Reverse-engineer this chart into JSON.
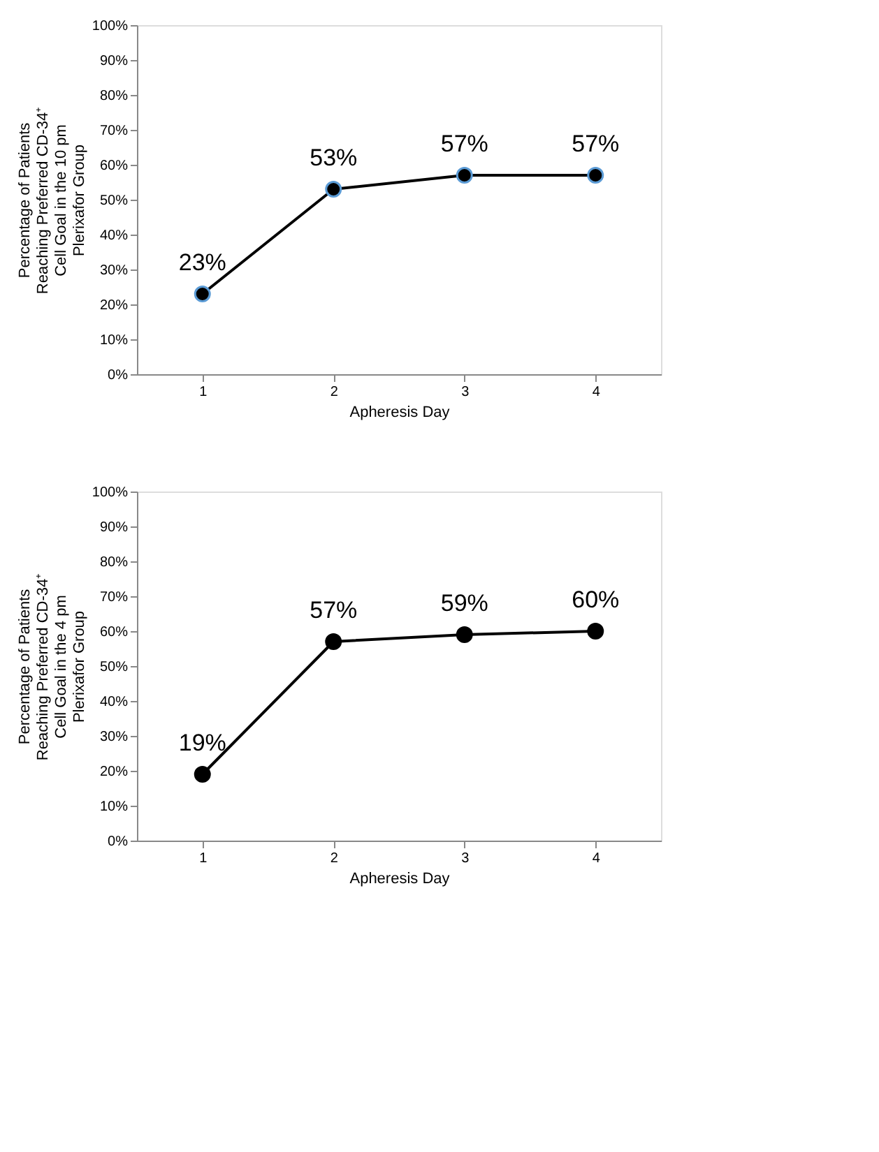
{
  "chart_data": [
    {
      "type": "line",
      "xlabel": "Apheresis Day",
      "ylabel": "Percentage of Patients Reaching Preferred CD-34⁺ Cell Goal in the 10 pm Plerixafor Group",
      "categories": [
        "1",
        "2",
        "3",
        "4"
      ],
      "series": [
        {
          "color": "#000000",
          "values": [
            23,
            53,
            57,
            57
          ],
          "value_labels": [
            "23%",
            "53%",
            "57%",
            "57%"
          ]
        }
      ],
      "ylim": [
        0,
        100
      ],
      "yticks": [
        {
          "value": 0,
          "label": "0%"
        },
        {
          "value": 10,
          "label": "10%"
        },
        {
          "value": 20,
          "label": "20%"
        },
        {
          "value": 30,
          "label": "30%"
        },
        {
          "value": 40,
          "label": "40%"
        },
        {
          "value": 50,
          "label": "50%"
        },
        {
          "value": 60,
          "label": "60%"
        },
        {
          "value": 70,
          "label": "70%"
        },
        {
          "value": 80,
          "label": "80%"
        },
        {
          "value": 90,
          "label": "90%"
        },
        {
          "value": 100,
          "label": "100%"
        }
      ],
      "marker": "circle",
      "grid": false
    },
    {
      "type": "line",
      "xlabel": "Apheresis Day",
      "ylabel": "Percentage of Patients Reaching Preferred CD-34⁺ Cell Goal in the 4 pm Plerixafor Group",
      "categories": [
        "1",
        "2",
        "3",
        "4"
      ],
      "series": [
        {
          "color": "#000000",
          "values": [
            19,
            57,
            59,
            60
          ],
          "value_labels": [
            "19%",
            "57%",
            "59%",
            "60%"
          ]
        }
      ],
      "ylim": [
        0,
        100
      ],
      "yticks": [
        {
          "value": 0,
          "label": "0%"
        },
        {
          "value": 10,
          "label": "10%"
        },
        {
          "value": 20,
          "label": "20%"
        },
        {
          "value": 30,
          "label": "30%"
        },
        {
          "value": 40,
          "label": "40%"
        },
        {
          "value": 50,
          "label": "50%"
        },
        {
          "value": 60,
          "label": "60%"
        },
        {
          "value": 70,
          "label": "70%"
        },
        {
          "value": 80,
          "label": "80%"
        },
        {
          "value": 90,
          "label": "90%"
        },
        {
          "value": 100,
          "label": "100%"
        }
      ],
      "marker": "circle",
      "grid": false
    }
  ]
}
